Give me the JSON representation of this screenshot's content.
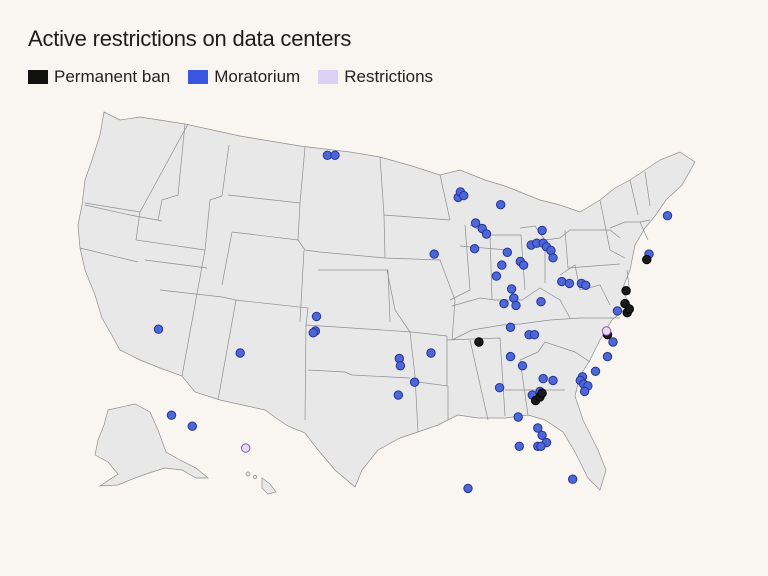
{
  "title": "Active restrictions on data centers",
  "legend": [
    {
      "label": "Permanent ban",
      "color": "#111111"
    },
    {
      "label": "Moratorium",
      "color": "#3a56e0"
    },
    {
      "label": "Restrictions",
      "color": "#ddd0f5"
    }
  ],
  "styles": {
    "Permanent ban": {
      "fill": "#1a1a1a",
      "stroke": "#000000"
    },
    "Moratorium": {
      "fill": "#4d66d8",
      "stroke": "#253394"
    },
    "Restrictions": {
      "fill": "#e7dcf6",
      "stroke": "#8a57a8"
    }
  },
  "markers": [
    {
      "lon": -104.1,
      "lat": 48.6,
      "type": "Moratorium"
    },
    {
      "lon": -103.4,
      "lat": 48.6,
      "type": "Moratorium"
    },
    {
      "lon": -119.6,
      "lat": 39.1,
      "type": "Moratorium"
    },
    {
      "lon": -105.1,
      "lat": 39.8,
      "type": "Moratorium"
    },
    {
      "lon": -105.2,
      "lat": 39.0,
      "type": "Moratorium"
    },
    {
      "lon": -105.4,
      "lat": 38.9,
      "type": "Moratorium"
    },
    {
      "lon": -112.1,
      "lat": 37.8,
      "type": "Moratorium"
    },
    {
      "lon": -118.4,
      "lat": 34.4,
      "type": "Moratorium"
    },
    {
      "lon": -116.5,
      "lat": 33.8,
      "type": "Moratorium"
    },
    {
      "lon": -111.6,
      "lat": 32.6,
      "type": "Restrictions"
    },
    {
      "lon": -92.1,
      "lat": 46.3,
      "type": "Moratorium"
    },
    {
      "lon": -91.9,
      "lat": 46.6,
      "type": "Moratorium"
    },
    {
      "lon": -91.6,
      "lat": 46.4,
      "type": "Moratorium"
    },
    {
      "lon": -88.2,
      "lat": 45.9,
      "type": "Moratorium"
    },
    {
      "lon": -90.5,
      "lat": 44.9,
      "type": "Moratorium"
    },
    {
      "lon": -89.9,
      "lat": 44.6,
      "type": "Moratorium"
    },
    {
      "lon": -89.5,
      "lat": 44.3,
      "type": "Moratorium"
    },
    {
      "lon": -94.3,
      "lat": 43.2,
      "type": "Moratorium"
    },
    {
      "lon": -90.6,
      "lat": 43.5,
      "type": "Moratorium"
    },
    {
      "lon": -88.1,
      "lat": 42.6,
      "type": "Moratorium"
    },
    {
      "lon": -88.6,
      "lat": 42.0,
      "type": "Moratorium"
    },
    {
      "lon": -87.6,
      "lat": 43.3,
      "type": "Moratorium"
    },
    {
      "lon": -84.4,
      "lat": 44.5,
      "type": "Moratorium"
    },
    {
      "lon": -85.4,
      "lat": 43.7,
      "type": "Moratorium"
    },
    {
      "lon": -84.9,
      "lat": 43.8,
      "type": "Moratorium"
    },
    {
      "lon": -84.3,
      "lat": 43.8,
      "type": "Moratorium"
    },
    {
      "lon": -84.0,
      "lat": 43.6,
      "type": "Moratorium"
    },
    {
      "lon": -83.6,
      "lat": 43.4,
      "type": "Moratorium"
    },
    {
      "lon": -83.4,
      "lat": 43.0,
      "type": "Moratorium"
    },
    {
      "lon": -86.4,
      "lat": 42.8,
      "type": "Moratorium"
    },
    {
      "lon": -86.1,
      "lat": 42.6,
      "type": "Moratorium"
    },
    {
      "lon": -82.6,
      "lat": 41.7,
      "type": "Moratorium"
    },
    {
      "lon": -81.9,
      "lat": 41.6,
      "type": "Moratorium"
    },
    {
      "lon": -87.2,
      "lat": 41.3,
      "type": "Moratorium"
    },
    {
      "lon": -87.0,
      "lat": 40.8,
      "type": "Moratorium"
    },
    {
      "lon": -86.8,
      "lat": 40.4,
      "type": "Moratorium"
    },
    {
      "lon": -87.9,
      "lat": 40.5,
      "type": "Moratorium"
    },
    {
      "lon": -84.5,
      "lat": 40.6,
      "type": "Moratorium"
    },
    {
      "lon": -87.3,
      "lat": 39.2,
      "type": "Moratorium"
    },
    {
      "lon": -85.6,
      "lat": 38.8,
      "type": "Moratorium"
    },
    {
      "lon": -85.1,
      "lat": 38.8,
      "type": "Moratorium"
    },
    {
      "lon": -87.3,
      "lat": 37.6,
      "type": "Moratorium"
    },
    {
      "lon": -86.2,
      "lat": 37.1,
      "type": "Moratorium"
    },
    {
      "lon": -90.2,
      "lat": 38.4,
      "type": "Permanent ban"
    },
    {
      "lon": -97.5,
      "lat": 37.5,
      "type": "Moratorium"
    },
    {
      "lon": -97.4,
      "lat": 37.1,
      "type": "Moratorium"
    },
    {
      "lon": -94.6,
      "lat": 37.8,
      "type": "Moratorium"
    },
    {
      "lon": -96.1,
      "lat": 36.2,
      "type": "Moratorium"
    },
    {
      "lon": -97.6,
      "lat": 35.5,
      "type": "Moratorium"
    },
    {
      "lon": -88.3,
      "lat": 35.9,
      "type": "Moratorium"
    },
    {
      "lon": -84.3,
      "lat": 36.4,
      "type": "Moratorium"
    },
    {
      "lon": -83.4,
      "lat": 36.3,
      "type": "Moratorium"
    },
    {
      "lon": -84.6,
      "lat": 35.7,
      "type": "Moratorium"
    },
    {
      "lon": -85.3,
      "lat": 35.5,
      "type": "Moratorium"
    },
    {
      "lon": -85.0,
      "lat": 35.2,
      "type": "Permanent ban"
    },
    {
      "lon": -84.6,
      "lat": 35.4,
      "type": "Permanent ban"
    },
    {
      "lon": -84.4,
      "lat": 35.6,
      "type": "Permanent ban"
    },
    {
      "lon": -86.6,
      "lat": 34.3,
      "type": "Moratorium"
    },
    {
      "lon": -84.8,
      "lat": 33.7,
      "type": "Moratorium"
    },
    {
      "lon": -84.4,
      "lat": 33.3,
      "type": "Moratorium"
    },
    {
      "lon": -84.0,
      "lat": 32.9,
      "type": "Moratorium"
    },
    {
      "lon": -84.8,
      "lat": 32.7,
      "type": "Moratorium"
    },
    {
      "lon": -84.5,
      "lat": 32.7,
      "type": "Moratorium"
    },
    {
      "lon": -86.5,
      "lat": 32.7,
      "type": "Moratorium"
    },
    {
      "lon": -81.6,
      "lat": 30.9,
      "type": "Moratorium"
    },
    {
      "lon": -91.2,
      "lat": 30.4,
      "type": "Moratorium"
    },
    {
      "lon": -80.7,
      "lat": 36.5,
      "type": "Moratorium"
    },
    {
      "lon": -80.9,
      "lat": 36.3,
      "type": "Moratorium"
    },
    {
      "lon": -80.6,
      "lat": 36.1,
      "type": "Moratorium"
    },
    {
      "lon": -80.2,
      "lat": 36.0,
      "type": "Moratorium"
    },
    {
      "lon": -80.5,
      "lat": 35.7,
      "type": "Moratorium"
    },
    {
      "lon": -79.5,
      "lat": 36.8,
      "type": "Moratorium"
    },
    {
      "lon": -78.4,
      "lat": 37.6,
      "type": "Moratorium"
    },
    {
      "lon": -77.9,
      "lat": 38.4,
      "type": "Moratorium"
    },
    {
      "lon": -78.4,
      "lat": 38.8,
      "type": "Permanent ban"
    },
    {
      "lon": -78.5,
      "lat": 39.0,
      "type": "Restrictions"
    },
    {
      "lon": -77.5,
      "lat": 40.1,
      "type": "Moratorium"
    },
    {
      "lon": -76.8,
      "lat": 40.5,
      "type": "Permanent ban"
    },
    {
      "lon": -76.6,
      "lat": 40.0,
      "type": "Permanent ban"
    },
    {
      "lon": -76.4,
      "lat": 40.2,
      "type": "Permanent ban"
    },
    {
      "lon": -76.7,
      "lat": 41.2,
      "type": "Permanent ban"
    },
    {
      "lon": -74.8,
      "lat": 42.9,
      "type": "Permanent ban"
    },
    {
      "lon": -74.6,
      "lat": 43.2,
      "type": "Moratorium"
    },
    {
      "lon": -72.9,
      "lat": 45.3,
      "type": "Moratorium"
    },
    {
      "lon": -80.8,
      "lat": 41.6,
      "type": "Moratorium"
    },
    {
      "lon": -80.4,
      "lat": 41.5,
      "type": "Moratorium"
    }
  ]
}
